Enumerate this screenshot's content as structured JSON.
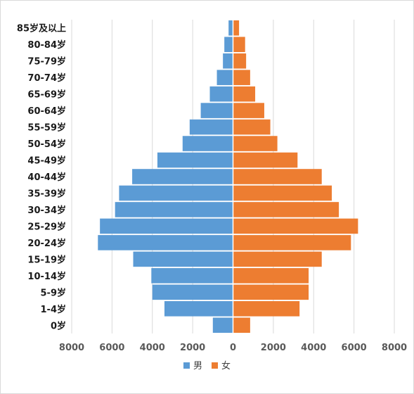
{
  "chart_data": {
    "type": "bar",
    "orientation": "horizontal",
    "subtype": "population-pyramid",
    "categories": [
      "85岁及以上",
      "80-84岁",
      "75-79岁",
      "70-74岁",
      "65-69岁",
      "60-64岁",
      "55-59岁",
      "50-54岁",
      "45-49岁",
      "40-44岁",
      "35-39岁",
      "30-34岁",
      "25-29岁",
      "20-24岁",
      "15-19岁",
      "10-14岁",
      "5-9岁",
      "1-4岁",
      "0岁"
    ],
    "series": [
      {
        "name": "男",
        "color": "#5B9BD5",
        "side": "left",
        "values": [
          220,
          430,
          500,
          800,
          1150,
          1600,
          2150,
          2500,
          3750,
          5000,
          5650,
          5850,
          6600,
          6700,
          4950,
          4050,
          4000,
          3400,
          1000
        ]
      },
      {
        "name": "女",
        "color": "#ED7D31",
        "side": "right",
        "values": [
          300,
          600,
          650,
          850,
          1100,
          1550,
          1850,
          2200,
          3200,
          4400,
          4900,
          5250,
          6200,
          5850,
          4400,
          3750,
          3750,
          3300,
          850
        ]
      }
    ],
    "xticks": [
      "8000",
      "6000",
      "4000",
      "2000",
      "0",
      "2000",
      "4000",
      "6000",
      "8000"
    ],
    "xlim": [
      -8000,
      8000
    ],
    "title": "",
    "xlabel": "",
    "ylabel": "",
    "grid": "vertical",
    "legend_position": "bottom"
  }
}
